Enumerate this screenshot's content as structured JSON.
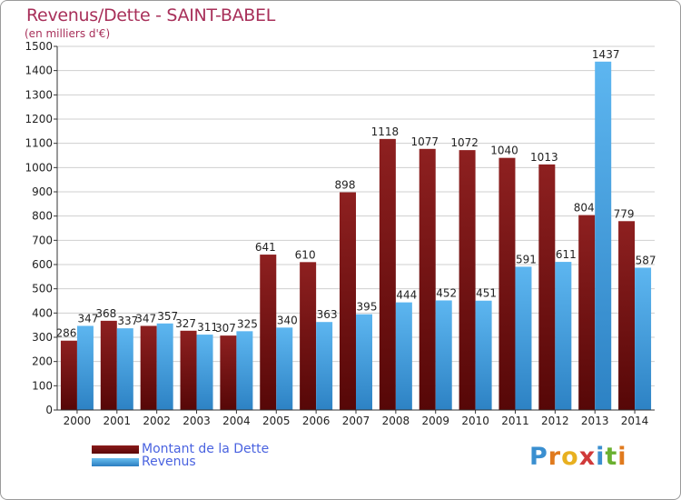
{
  "chart_data": {
    "type": "bar",
    "title": "Revenus/Dette - SAINT-BABEL",
    "subtitle": "(en milliers d'€)",
    "categories": [
      "2000",
      "2001",
      "2002",
      "2003",
      "2004",
      "2005",
      "2006",
      "2007",
      "2008",
      "2009",
      "2010",
      "2011",
      "2012",
      "2013",
      "2014"
    ],
    "series": [
      {
        "name": "Montant de la Dette",
        "color": "#8b1a1a",
        "values": [
          286,
          368,
          347,
          327,
          307,
          641,
          610,
          898,
          1118,
          1077,
          1072,
          1040,
          1013,
          804,
          779
        ]
      },
      {
        "name": "Revenus",
        "color": "#3e9ee0",
        "values": [
          347,
          337,
          357,
          311,
          325,
          340,
          363,
          395,
          444,
          452,
          451,
          591,
          611,
          1437,
          587
        ]
      }
    ],
    "ylim": [
      0,
      1500
    ],
    "yticks": [
      0,
      100,
      200,
      300,
      400,
      500,
      600,
      700,
      800,
      900,
      1000,
      1100,
      1200,
      1300,
      1400,
      1500
    ],
    "grid": true,
    "legend_position": "bottom-left"
  },
  "logo": {
    "letters": [
      "P",
      "r",
      "o",
      "x",
      "i",
      "t",
      "i"
    ],
    "colors": [
      "#3a8fd0",
      "#e07a1e",
      "#e8b020",
      "#d03a3a",
      "#3a8fd0",
      "#6ab030",
      "#e07a1e"
    ]
  }
}
